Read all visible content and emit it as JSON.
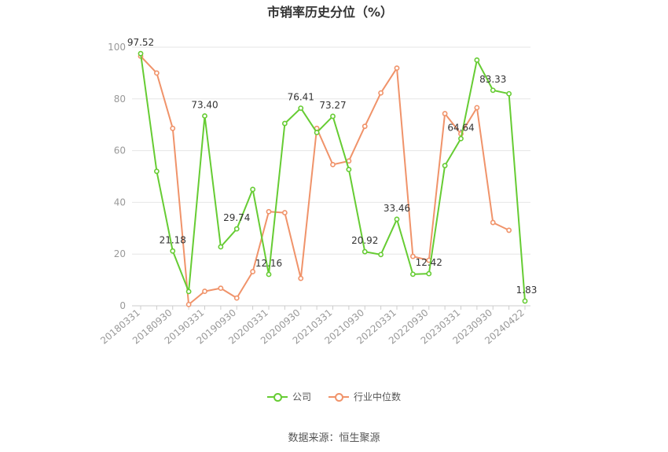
{
  "chart_data": {
    "type": "line",
    "title": "市销率历史分位（%）",
    "x": [
      "20180331",
      "20180630",
      "20180930",
      "20181231",
      "20190331",
      "20190630",
      "20190930",
      "20191231",
      "20200331",
      "20200630",
      "20200930",
      "20201231",
      "20210331",
      "20210630",
      "20210930",
      "20211231",
      "20220331",
      "20220630",
      "20220930",
      "20221231",
      "20230331",
      "20230630",
      "20230930",
      "20231231",
      "20240422"
    ],
    "x_tick_labels": [
      "20180331",
      "20180930",
      "20190331",
      "20190930",
      "20200331",
      "20200930",
      "20210331",
      "20210930",
      "20220331",
      "20220930",
      "20230331",
      "20230930",
      "20240422"
    ],
    "ylim": [
      0,
      100
    ],
    "y_ticks": [
      0,
      20,
      40,
      60,
      80,
      100
    ],
    "grid": true,
    "legend_position": "bottom",
    "series": [
      {
        "name": "公司",
        "color": "#66cc33",
        "values": [
          97.52,
          52,
          21.18,
          5.5,
          73.4,
          22.8,
          29.74,
          45,
          12.16,
          70.5,
          76.41,
          67,
          73.27,
          52.7,
          20.92,
          19.8,
          33.46,
          12.2,
          12.42,
          54.2,
          64.64,
          95,
          83.33,
          82,
          1.83
        ]
      },
      {
        "name": "行业中位数",
        "color": "#f0936a",
        "values": [
          96.5,
          90,
          68.6,
          0.5,
          5.6,
          6.8,
          3,
          13.2,
          36.4,
          36,
          10.6,
          68.6,
          54.6,
          56,
          69.4,
          82.3,
          91.9,
          19.1,
          17.6,
          74.3,
          66.5,
          76.6,
          32.2,
          29.2,
          null
        ]
      }
    ],
    "annotations": [
      {
        "series": 0,
        "index": 0,
        "text": "97.52"
      },
      {
        "series": 0,
        "index": 2,
        "text": "21.18"
      },
      {
        "series": 0,
        "index": 4,
        "text": "73.40"
      },
      {
        "series": 0,
        "index": 6,
        "text": "29.74"
      },
      {
        "series": 0,
        "index": 8,
        "text": "12.16"
      },
      {
        "series": 0,
        "index": 10,
        "text": "76.41"
      },
      {
        "series": 0,
        "index": 12,
        "text": "73.27"
      },
      {
        "series": 0,
        "index": 14,
        "text": "20.92"
      },
      {
        "series": 0,
        "index": 16,
        "text": "33.46"
      },
      {
        "series": 0,
        "index": 18,
        "text": "12.42"
      },
      {
        "series": 0,
        "index": 20,
        "text": "64.64"
      },
      {
        "series": 0,
        "index": 22,
        "text": "83.33"
      },
      {
        "series": 0,
        "index": 24,
        "text": "1.83"
      }
    ]
  },
  "legend": {
    "company": "公司",
    "industry": "行业中位数"
  },
  "source": "数据来源：恒生聚源"
}
